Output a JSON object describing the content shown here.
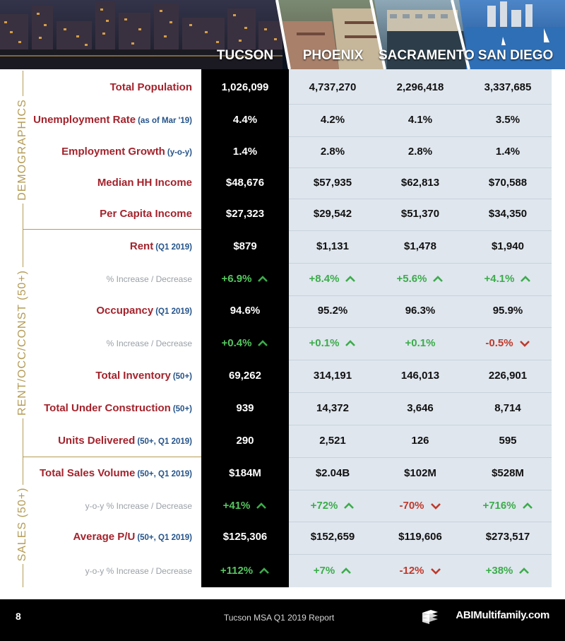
{
  "header": {
    "cities": [
      "TUCSON",
      "PHOENIX",
      "SACRAMENTO",
      "SAN DIEGO"
    ]
  },
  "sections": [
    {
      "label": "DEMOGRAPHICS"
    },
    {
      "label": "RENT/OCC/CONST (50+)"
    },
    {
      "label": "SALES (50+)"
    }
  ],
  "rows": [
    {
      "label": "Total Population",
      "sub": "",
      "values": [
        "1,026,099",
        "4,737,270",
        "2,296,418",
        "3,337,685"
      ]
    },
    {
      "label": "Unemployment Rate",
      "sub": "(as of Mar '19)",
      "values": [
        "4.4%",
        "4.2%",
        "4.1%",
        "3.5%"
      ]
    },
    {
      "label": "Employment Growth",
      "sub": "(y-o-y)",
      "values": [
        "1.4%",
        "2.8%",
        "2.8%",
        "1.4%"
      ]
    },
    {
      "label": "Median HH Income",
      "sub": "",
      "values": [
        "$48,676",
        "$57,935",
        "$62,813",
        "$70,588"
      ]
    },
    {
      "label": "Per Capita Income",
      "sub": "",
      "values": [
        "$27,323",
        "$29,542",
        "$51,370",
        "$34,350"
      ]
    },
    {
      "label": "Rent",
      "sub": "(Q1 2019)",
      "values": [
        "$879",
        "$1,131",
        "$1,478",
        "$1,940"
      ]
    },
    {
      "label": "% Increase / Decrease",
      "sub": "",
      "pct": true,
      "values": [
        "+6.9%",
        "+8.4%",
        "+5.6%",
        "+4.1%"
      ],
      "trend": [
        "up",
        "up",
        "up",
        "up"
      ]
    },
    {
      "label": "Occupancy",
      "sub": "(Q1 2019)",
      "values": [
        "94.6%",
        "95.2%",
        "96.3%",
        "95.9%"
      ]
    },
    {
      "label": "% Increase / Decrease",
      "sub": "",
      "pct": true,
      "values": [
        "+0.4%",
        "+0.1%",
        "+0.1%",
        "-0.5%"
      ],
      "trend": [
        "up",
        "up",
        "none",
        "down"
      ]
    },
    {
      "label": "Total Inventory",
      "sub": "(50+)",
      "values": [
        "69,262",
        "314,191",
        "146,013",
        "226,901"
      ]
    },
    {
      "label": "Total Under Construction",
      "sub": "(50+)",
      "values": [
        "939",
        "14,372",
        "3,646",
        "8,714"
      ]
    },
    {
      "label": "Units Delivered",
      "sub": "(50+, Q1 2019)",
      "values": [
        "290",
        "2,521",
        "126",
        "595"
      ]
    },
    {
      "label": "Total Sales Volume",
      "sub": "(50+, Q1 2019)",
      "values": [
        "$184M",
        "$2.04B",
        "$102M",
        "$528M"
      ]
    },
    {
      "label": "y-o-y % Increase / Decrease",
      "sub": "",
      "pct": true,
      "values": [
        "+41%",
        "+72%",
        "-70%",
        "+716%"
      ],
      "trend": [
        "up",
        "up",
        "down",
        "up"
      ]
    },
    {
      "label": "Average P/U",
      "sub": "(50+, Q1 2019)",
      "values": [
        "$125,306",
        "$152,659",
        "$119,606",
        "$273,517"
      ]
    },
    {
      "label": "y-o-y % Increase / Decrease",
      "sub": "",
      "pct": true,
      "values": [
        "+112%",
        "+7%",
        "-12%",
        "+38%"
      ],
      "trend": [
        "up",
        "up",
        "down",
        "up"
      ]
    }
  ],
  "footer": {
    "page_number": "8",
    "report_title": "Tucson MSA Q1 2019 Report",
    "brand": "ABIMultifamily.com"
  },
  "colors": {
    "label_red": "#a3232c",
    "label_blue": "#24538a",
    "section_gold": "#b49b55",
    "positive_green": "#3cac4b",
    "negative_red": "#c0392b",
    "tucson_column": "#000000",
    "other_columns": "#dfe6ee"
  }
}
